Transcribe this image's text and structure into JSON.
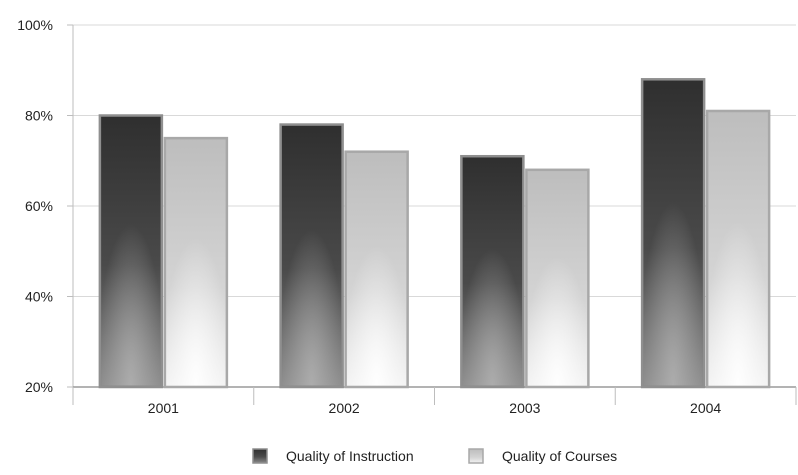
{
  "chart_data": {
    "type": "bar",
    "title": "",
    "xlabel": "",
    "ylabel": "",
    "categories": [
      "2001",
      "2002",
      "2003",
      "2004"
    ],
    "series": [
      {
        "name": "Quality of Instruction",
        "values": [
          80,
          78,
          71,
          88
        ],
        "color": "#3a3a3a"
      },
      {
        "name": "Quality of Courses",
        "values": [
          75,
          72,
          68,
          81
        ],
        "color": "#c4c4c4"
      }
    ],
    "ylim": [
      20,
      100
    ],
    "y_ticks": [
      {
        "value": 20,
        "label": "20%"
      },
      {
        "value": 40,
        "label": "40%"
      },
      {
        "value": 60,
        "label": "60%"
      },
      {
        "value": 80,
        "label": "80%"
      },
      {
        "value": 100,
        "label": "100%"
      }
    ],
    "grid": true,
    "legend_position": "bottom-center"
  }
}
